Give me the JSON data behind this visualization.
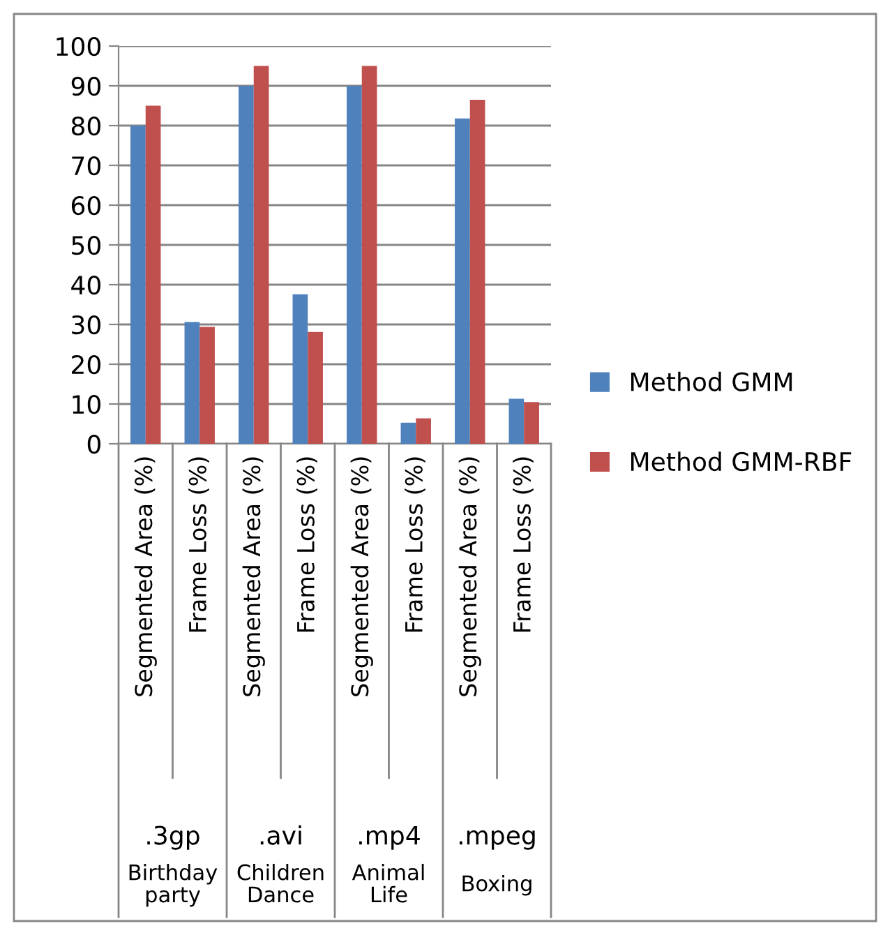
{
  "chart_data": {
    "type": "bar",
    "categories": [
      "Segmented Area (%)",
      "Frame Loss (%)",
      "Segmented Area (%)",
      "Frame Loss (%)",
      "Segmented Area (%)",
      "Frame Loss (%)",
      "Segmented Area (%)",
      "Frame Loss (%)"
    ],
    "series": [
      {
        "name": "Method GMM",
        "color": "#4f81bd",
        "values": [
          80,
          30.6,
          90,
          37.6,
          90,
          5.3,
          81.8,
          11.3
        ]
      },
      {
        "name": "Method GMM-RBF",
        "color": "#c0504d",
        "values": [
          85,
          29.4,
          95,
          28.1,
          95,
          6.4,
          86.5,
          10.5
        ]
      }
    ],
    "annotations": [
      ".3gp",
      ".avi",
      ".mp4",
      ".mpeg",
      "Birthday party",
      "Children Dance",
      "Animal Life",
      "Boxing"
    ],
    "ylim": [
      0,
      100
    ],
    "yticks": [
      0,
      10,
      20,
      30,
      40,
      50,
      60,
      70,
      80,
      90,
      100
    ],
    "grid": "y",
    "legend": "right"
  }
}
